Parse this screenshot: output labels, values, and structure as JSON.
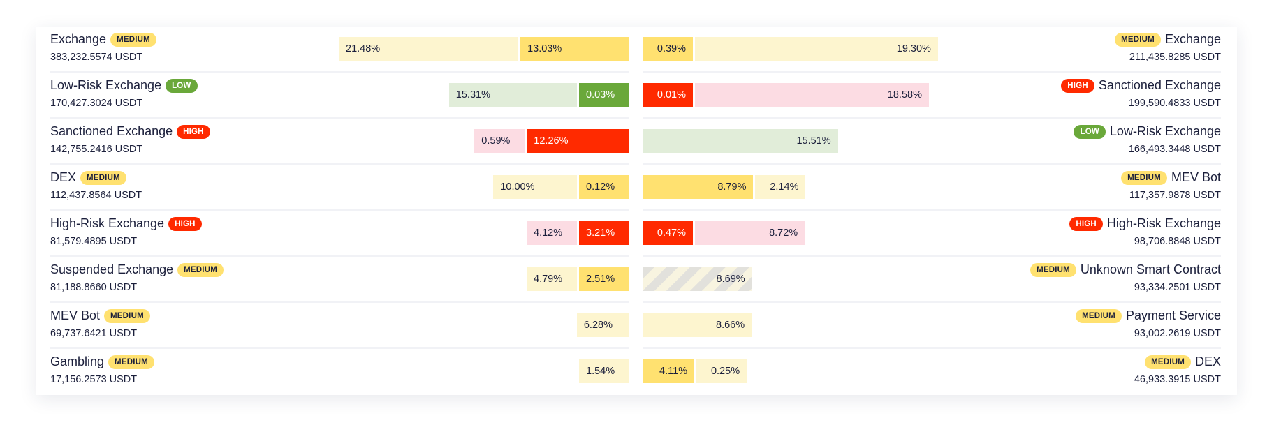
{
  "risk_colors": {
    "MEDIUM": {
      "dark": "#ffe170",
      "light": "#fdf5cf",
      "badge_text": "#1b1f3b",
      "dark_text": "#1b1f3b"
    },
    "LOW": {
      "dark": "#6aa83a",
      "light": "#e1edd9",
      "badge_text": "#ffffff",
      "dark_text": "#ffffff"
    },
    "HIGH": {
      "dark": "#ff2a00",
      "light": "#fcdce3",
      "badge_text": "#ffffff",
      "dark_text": "#ffffff"
    }
  },
  "left": [
    {
      "name": "Exchange",
      "risk": "MEDIUM",
      "amount": "383,232.5574 USDT",
      "segments": [
        {
          "label": "21.48%",
          "pct": 21.48,
          "tone": "light"
        },
        {
          "label": "13.03%",
          "pct": 13.03,
          "tone": "dark"
        }
      ]
    },
    {
      "name": "Low-Risk Exchange",
      "risk": "LOW",
      "amount": "170,427.3024 USDT",
      "segments": [
        {
          "label": "15.31%",
          "pct": 15.31,
          "tone": "light"
        },
        {
          "label": "0.03%",
          "pct": 0.03,
          "tone": "dark"
        }
      ]
    },
    {
      "name": "Sanctioned Exchange",
      "risk": "HIGH",
      "amount": "142,755.2416 USDT",
      "segments": [
        {
          "label": "0.59%",
          "pct": 0.59,
          "tone": "light"
        },
        {
          "label": "12.26%",
          "pct": 12.26,
          "tone": "dark"
        }
      ]
    },
    {
      "name": "DEX",
      "risk": "MEDIUM",
      "amount": "112,437.8564 USDT",
      "segments": [
        {
          "label": "10.00%",
          "pct": 10.0,
          "tone": "light"
        },
        {
          "label": "0.12%",
          "pct": 0.12,
          "tone": "dark"
        }
      ]
    },
    {
      "name": "High-Risk Exchange",
      "risk": "HIGH",
      "amount": "81,579.4895 USDT",
      "segments": [
        {
          "label": "4.12%",
          "pct": 4.12,
          "tone": "light"
        },
        {
          "label": "3.21%",
          "pct": 3.21,
          "tone": "dark"
        }
      ]
    },
    {
      "name": "Suspended Exchange",
      "risk": "MEDIUM",
      "amount": "81,188.8660 USDT",
      "segments": [
        {
          "label": "4.79%",
          "pct": 4.79,
          "tone": "light"
        },
        {
          "label": "2.51%",
          "pct": 2.51,
          "tone": "dark"
        }
      ]
    },
    {
      "name": "MEV Bot",
      "risk": "MEDIUM",
      "amount": "69,737.6421 USDT",
      "segments": [
        {
          "label": "6.28%",
          "pct": 6.28,
          "tone": "light"
        }
      ]
    },
    {
      "name": "Gambling",
      "risk": "MEDIUM",
      "amount": "17,156.2573 USDT",
      "segments": [
        {
          "label": "1.54%",
          "pct": 1.54,
          "tone": "light"
        }
      ]
    }
  ],
  "right": [
    {
      "name": "Exchange",
      "risk": "MEDIUM",
      "amount": "211,435.8285 USDT",
      "segments": [
        {
          "label": "0.39%",
          "pct": 0.39,
          "tone": "dark"
        },
        {
          "label": "19.30%",
          "pct": 19.3,
          "tone": "light"
        }
      ]
    },
    {
      "name": "Sanctioned Exchange",
      "risk": "HIGH",
      "amount": "199,590.4833 USDT",
      "segments": [
        {
          "label": "0.01%",
          "pct": 0.01,
          "tone": "dark"
        },
        {
          "label": "18.58%",
          "pct": 18.58,
          "tone": "light"
        }
      ]
    },
    {
      "name": "Low-Risk Exchange",
      "risk": "LOW",
      "amount": "166,493.3448 USDT",
      "segments": [
        {
          "label": "15.51%",
          "pct": 15.51,
          "tone": "light"
        }
      ]
    },
    {
      "name": "MEV Bot",
      "risk": "MEDIUM",
      "amount": "117,357.9878 USDT",
      "segments": [
        {
          "label": "8.79%",
          "pct": 8.79,
          "tone": "dark"
        },
        {
          "label": "2.14%",
          "pct": 2.14,
          "tone": "light"
        }
      ]
    },
    {
      "name": "High-Risk Exchange",
      "risk": "HIGH",
      "amount": "98,706.8848 USDT",
      "segments": [
        {
          "label": "0.47%",
          "pct": 0.47,
          "tone": "dark"
        },
        {
          "label": "8.72%",
          "pct": 8.72,
          "tone": "light"
        }
      ]
    },
    {
      "name": "Unknown Smart Contract",
      "risk": "MEDIUM",
      "amount": "93,334.2501 USDT",
      "segments": [
        {
          "label": "8.69%",
          "pct": 8.69,
          "tone": "hatched"
        }
      ]
    },
    {
      "name": "Payment Service",
      "risk": "MEDIUM",
      "amount": "93,002.2619 USDT",
      "segments": [
        {
          "label": "8.66%",
          "pct": 8.66,
          "tone": "light"
        }
      ]
    },
    {
      "name": "DEX",
      "risk": "MEDIUM",
      "amount": "46,933.3915 USDT",
      "segments": [
        {
          "label": "4.11%",
          "pct": 4.11,
          "tone": "dark"
        },
        {
          "label": "0.25%",
          "pct": 0.25,
          "tone": "light"
        }
      ]
    }
  ]
}
